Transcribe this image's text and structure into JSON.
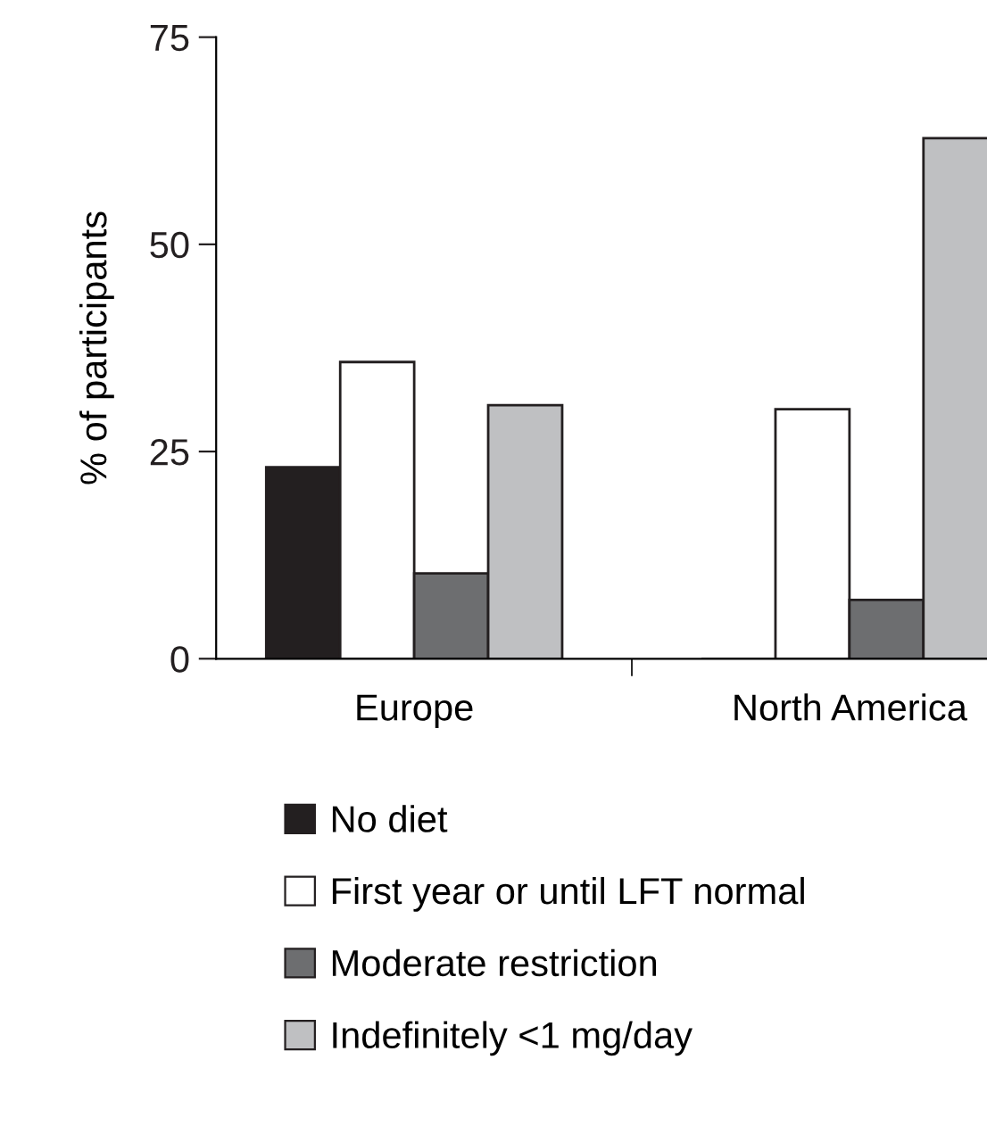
{
  "chart_data": {
    "type": "bar",
    "ylabel": "% of participants",
    "categories": [
      "Europe",
      "North America"
    ],
    "series": [
      {
        "name": "No diet",
        "color": "#231f20",
        "values": [
          23.1,
          0
        ]
      },
      {
        "name": "First year or until LFT normal",
        "color": "#ffffff",
        "values": [
          35.8,
          30.1
        ]
      },
      {
        "name": "Moderate restriction",
        "color": "#6d6e70",
        "values": [
          10.3,
          7.1
        ]
      },
      {
        "name": "Indefinitely <1 mg/day",
        "color": "#bfc0c2",
        "values": [
          30.6,
          62.8
        ]
      }
    ],
    "ylim": [
      0,
      75
    ],
    "yticks": [
      0,
      25,
      50,
      75
    ],
    "grid": false,
    "legend": "bottom"
  }
}
